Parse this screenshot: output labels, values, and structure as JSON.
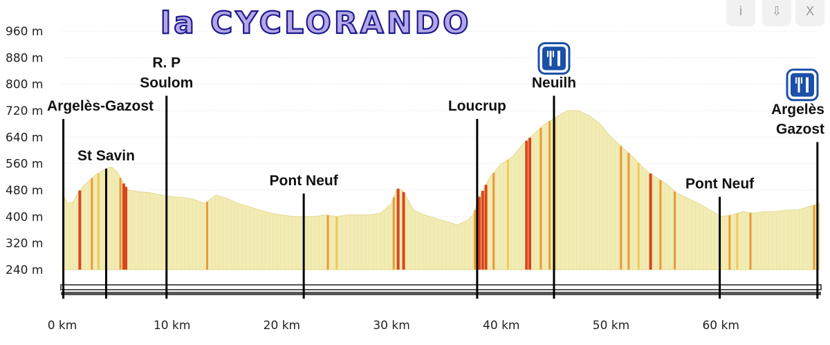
{
  "title": "la CYCLORANDO",
  "window_controls": {
    "info": "i",
    "download": "⇩",
    "close": "X"
  },
  "colors": {
    "fill_low": "#f2ecb4",
    "fill_mid": "#eec95a",
    "fill_steep": "#e89a3a",
    "fill_very_steep": "#d9461c",
    "axis_bar": "#555555",
    "icon_blue": "#1b4fa8"
  },
  "chart_data": {
    "type": "area",
    "title": "la CYCLORANDO",
    "xlabel": "",
    "ylabel": "",
    "xlim": [
      0,
      69
    ],
    "ylim": [
      240,
      960
    ],
    "grid": true,
    "y_ticks": [
      240,
      320,
      400,
      480,
      560,
      640,
      720,
      800,
      880,
      960
    ],
    "y_tick_labels": [
      "240 m",
      "320 m",
      "400 m",
      "480 m",
      "560 m",
      "640 m",
      "720 m",
      "800 m",
      "880 m",
      "960 m"
    ],
    "x_ticks": [
      0,
      10,
      20,
      30,
      40,
      50,
      60
    ],
    "x_tick_labels": [
      "0 km",
      "10 km",
      "20 km",
      "30 km",
      "40 km",
      "50 km",
      "60 km"
    ],
    "series": [
      {
        "x": [
          0,
          0.5,
          1,
          1.5,
          2,
          2.5,
          3,
          3.5,
          4,
          4.5,
          5,
          5.5,
          6,
          7,
          8,
          9,
          10,
          11,
          12,
          13,
          14,
          15,
          16,
          17,
          18,
          19,
          20,
          21,
          22,
          23,
          24,
          25,
          26,
          27,
          28,
          29,
          30,
          30.5,
          31,
          32,
          33,
          34,
          35,
          36,
          37,
          37.5,
          38,
          39,
          40,
          41,
          42,
          43,
          44,
          45,
          46,
          47,
          48,
          49,
          50,
          51,
          52,
          53,
          54,
          55,
          56,
          57,
          58,
          59,
          60,
          61,
          62,
          63,
          64,
          65,
          66,
          67,
          68,
          69
        ],
        "y": [
          470,
          440,
          445,
          475,
          495,
          510,
          525,
          535,
          545,
          550,
          535,
          505,
          480,
          475,
          472,
          465,
          460,
          458,
          452,
          440,
          465,
          455,
          440,
          430,
          420,
          410,
          405,
          400,
          400,
          400,
          405,
          400,
          405,
          405,
          405,
          410,
          440,
          485,
          480,
          420,
          405,
          395,
          385,
          375,
          390,
          410,
          460,
          520,
          560,
          580,
          620,
          650,
          680,
          700,
          720,
          720,
          705,
          680,
          640,
          610,
          580,
          545,
          520,
          500,
          470,
          455,
          440,
          420,
          400,
          405,
          415,
          410,
          415,
          415,
          420,
          420,
          430,
          440
        ]
      }
    ],
    "segments": [
      {
        "x": 1.6,
        "level": "very_steep"
      },
      {
        "x": 2.7,
        "level": "steep"
      },
      {
        "x": 3.3,
        "level": "mid"
      },
      {
        "x": 5.3,
        "level": "steep"
      },
      {
        "x": 5.6,
        "level": "very_steep"
      },
      {
        "x": 5.8,
        "level": "very_steep"
      },
      {
        "x": 13.2,
        "level": "steep"
      },
      {
        "x": 24.2,
        "level": "steep"
      },
      {
        "x": 25.0,
        "level": "mid"
      },
      {
        "x": 30.2,
        "level": "steep"
      },
      {
        "x": 30.6,
        "level": "very_steep"
      },
      {
        "x": 31.1,
        "level": "very_steep"
      },
      {
        "x": 37.6,
        "level": "steep"
      },
      {
        "x": 38.0,
        "level": "very_steep"
      },
      {
        "x": 38.3,
        "level": "very_steep"
      },
      {
        "x": 38.6,
        "level": "very_steep"
      },
      {
        "x": 39.3,
        "level": "steep"
      },
      {
        "x": 40.6,
        "level": "mid"
      },
      {
        "x": 42.3,
        "level": "very_steep"
      },
      {
        "x": 42.6,
        "level": "very_steep"
      },
      {
        "x": 43.6,
        "level": "steep"
      },
      {
        "x": 44.4,
        "level": "steep"
      },
      {
        "x": 44.9,
        "level": "mid"
      },
      {
        "x": 50.9,
        "level": "steep"
      },
      {
        "x": 51.6,
        "level": "steep"
      },
      {
        "x": 52.5,
        "level": "mid"
      },
      {
        "x": 53.6,
        "level": "very_steep"
      },
      {
        "x": 54.5,
        "level": "steep"
      },
      {
        "x": 55.8,
        "level": "steep"
      },
      {
        "x": 60.8,
        "level": "steep"
      },
      {
        "x": 61.5,
        "level": "mid"
      },
      {
        "x": 62.7,
        "level": "steep"
      },
      {
        "x": 68.5,
        "level": "steep"
      }
    ],
    "waypoints": [
      {
        "label": "Argelès-Gazost",
        "x": 0.1,
        "label_y": 720
      },
      {
        "label": "St Savin",
        "x": 4.0,
        "label_y": 570
      },
      {
        "label": "R. P",
        "x": 9.5,
        "label_y": 850,
        "label2": "Soulom",
        "label2_y": 790
      },
      {
        "label": "Pont Neuf",
        "x": 22.0,
        "label_y": 495
      },
      {
        "label": "Loucrup",
        "x": 37.8,
        "label_y": 720
      },
      {
        "label": "Neuilh",
        "x": 44.8,
        "label_y": 790,
        "icon": "restaurant-icon"
      },
      {
        "label": "Pont Neuf",
        "x": 59.9,
        "label_y": 485
      },
      {
        "label": "Argelès",
        "x": 68.8,
        "label_y": 710,
        "label2": "Gazost",
        "label2_y": 650,
        "icon": "restaurant-icon"
      }
    ]
  }
}
